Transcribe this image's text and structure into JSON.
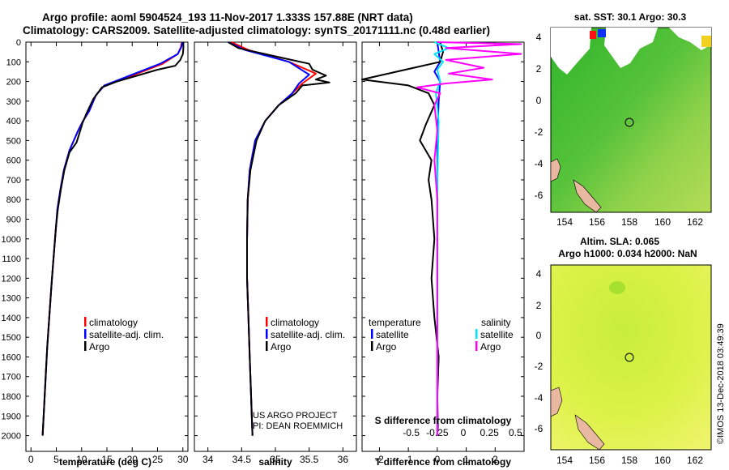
{
  "header": {
    "line1": "Argo profile: aoml 5904524_193 11-Nov-2017 1.333S 157.88E (NRT data)",
    "line2": "Climatology: CARS2009. Satellite-adjusted climatology: synTS_20171111.nc (0.48d earlier)"
  },
  "side_stamp": "©IMOS 13-Dec-2018 03:49:39",
  "colors": {
    "climatology": "#ff0000",
    "satellite": "#0000ff",
    "argo": "#000000",
    "sat_salinity": "#00e5ff",
    "clim_salinity": "#ff00ff"
  },
  "chart_data": [
    {
      "id": "temperature",
      "type": "line",
      "xlabel": "temperature (deg C)",
      "ylabel": "",
      "xlim": [
        -1,
        31
      ],
      "ylim": [
        2080,
        0
      ],
      "xticks": [
        0,
        5,
        10,
        15,
        20,
        25,
        30
      ],
      "yticks": [
        0,
        100,
        200,
        300,
        400,
        500,
        600,
        700,
        800,
        900,
        1000,
        1100,
        1200,
        1300,
        1400,
        1500,
        1600,
        1700,
        1800,
        1900,
        2000
      ],
      "legend": [
        "climatology",
        "satellite-adj. clim.",
        "Argo"
      ],
      "series": [
        {
          "name": "climatology",
          "color": "#ff0000",
          "x": [
            29.8,
            29.6,
            29.0,
            26.0,
            19.0,
            14.5,
            12.8,
            11.5,
            10.3,
            9.3,
            7.6,
            6.5,
            5.8,
            5.2,
            4.9,
            4.6,
            4.3,
            4.0,
            3.6,
            3.2,
            2.9,
            2.5,
            2.3
          ],
          "y": [
            0,
            25,
            60,
            110,
            180,
            220,
            270,
            350,
            400,
            450,
            550,
            650,
            750,
            850,
            950,
            1050,
            1150,
            1250,
            1400,
            1550,
            1700,
            1900,
            2000
          ]
        },
        {
          "name": "satellite-adj. clim.",
          "color": "#0000ff",
          "x": [
            29.9,
            29.7,
            29.0,
            25.5,
            18.5,
            14.5,
            12.8,
            11.5,
            10.3,
            9.3,
            7.6,
            6.5,
            5.8,
            5.2,
            4.9,
            4.6,
            4.3,
            4.0,
            3.6,
            3.2,
            2.9,
            2.5,
            2.3
          ],
          "y": [
            0,
            25,
            60,
            110,
            180,
            220,
            270,
            350,
            400,
            450,
            550,
            650,
            750,
            850,
            950,
            1050,
            1150,
            1250,
            1400,
            1550,
            1700,
            1900,
            2000
          ]
        },
        {
          "name": "Argo",
          "color": "#000000",
          "x": [
            30.1,
            30.1,
            30.0,
            29.5,
            28.5,
            25.0,
            17.0,
            14.0,
            12.3,
            11.0,
            10.2,
            9.6,
            9.0,
            7.6,
            6.6,
            5.9,
            5.3,
            4.9,
            4.6,
            4.3,
            4.0,
            3.6,
            3.2,
            2.9,
            2.6,
            2.3
          ],
          "y": [
            0,
            30,
            60,
            90,
            120,
            140,
            200,
            230,
            290,
            360,
            410,
            460,
            510,
            560,
            650,
            750,
            850,
            950,
            1050,
            1150,
            1250,
            1400,
            1550,
            1700,
            1850,
            2000
          ]
        }
      ]
    },
    {
      "id": "salinity",
      "type": "line",
      "xlabel": "salinity",
      "xlim": [
        33.8,
        36.2
      ],
      "ylim": [
        2080,
        0
      ],
      "xticks": [
        34,
        34.5,
        35,
        35.5,
        36
      ],
      "legend": [
        "climatology",
        "satellite-adj. clim.",
        "Argo"
      ],
      "credit": [
        "US ARGO PROJECT",
        "PI: DEAN ROEMMICH"
      ],
      "series": [
        {
          "name": "climatology",
          "color": "#ff0000",
          "x": [
            34.35,
            34.6,
            35.2,
            35.6,
            35.4,
            35.25,
            35.05,
            34.85,
            34.7,
            34.62,
            34.59,
            34.58,
            34.58,
            34.6,
            34.62,
            34.64,
            34.66
          ],
          "y": [
            0,
            40,
            100,
            160,
            210,
            260,
            320,
            400,
            500,
            650,
            800,
            1000,
            1200,
            1400,
            1600,
            1800,
            2000
          ]
        },
        {
          "name": "satellite-adj. clim.",
          "color": "#0000ff",
          "x": [
            34.3,
            34.55,
            35.2,
            35.5,
            35.35,
            35.25,
            35.05,
            34.85,
            34.7,
            34.62,
            34.59,
            34.58,
            34.58,
            34.6,
            34.62,
            34.64,
            34.66
          ],
          "y": [
            0,
            40,
            100,
            165,
            210,
            260,
            320,
            400,
            500,
            650,
            800,
            1000,
            1200,
            1400,
            1600,
            1800,
            2000
          ]
        },
        {
          "name": "Argo",
          "color": "#000000",
          "x": [
            34.3,
            34.45,
            35.1,
            35.5,
            35.55,
            35.75,
            35.6,
            35.8,
            35.4,
            35.3,
            35.05,
            34.85,
            34.72,
            34.63,
            34.59,
            34.58,
            34.58,
            34.6,
            34.62,
            34.64,
            34.66
          ],
          "y": [
            0,
            30,
            80,
            110,
            140,
            170,
            190,
            205,
            220,
            260,
            320,
            400,
            500,
            650,
            800,
            1000,
            1200,
            1400,
            1600,
            1800,
            2000
          ]
        }
      ]
    },
    {
      "id": "difference",
      "type": "line",
      "xlabel": "T difference from climatology",
      "xlabel_top": "S difference from climatology",
      "xlim": [
        -2.6,
        3.0
      ],
      "ylim": [
        2080,
        0
      ],
      "xticks": [
        -2,
        -1,
        0,
        1,
        2
      ],
      "xticks_top": [
        "-0.5",
        "-0.25",
        "0",
        "0.25",
        "0.5"
      ],
      "legend_left": {
        "title": "temperature",
        "items": [
          "satellite",
          "Argo"
        ]
      },
      "legend_right": {
        "title": "salinity",
        "items": [
          "satellite",
          "Argo"
        ]
      },
      "series": [
        {
          "name": "T satellite",
          "color": "#0000ff",
          "x": [
            0,
            0.05,
            0.1,
            -0.1,
            0.1,
            0.05,
            0,
            0
          ],
          "y": [
            0,
            50,
            100,
            150,
            200,
            300,
            500,
            2000
          ]
        },
        {
          "name": "T Argo",
          "color": "#000000",
          "x": [
            0.1,
            0.2,
            0.1,
            -2.6,
            -1.0,
            -0.3,
            -0.1,
            -0.4,
            -0.6,
            -0.2,
            -0.3,
            -0.2,
            -0.1,
            -0.2,
            -0.1,
            0.05,
            0.0,
            0.02,
            0.0
          ],
          "y": [
            0,
            50,
            100,
            190,
            220,
            260,
            320,
            420,
            500,
            600,
            700,
            800,
            1000,
            1200,
            1400,
            1600,
            1800,
            1950,
            2000
          ]
        },
        {
          "name": "S satellite",
          "color": "#00e5ff",
          "x": [
            -0.1,
            0.4,
            -0.1,
            0.2,
            0.0,
            0.1,
            -0.05,
            0.05,
            0.0,
            0.0
          ],
          "y": [
            0,
            30,
            60,
            100,
            140,
            200,
            260,
            400,
            700,
            2000
          ]
        },
        {
          "name": "S Argo",
          "color": "#ff00ff",
          "x": [
            0.0,
            2.9,
            0.3,
            2.9,
            0.3,
            1.6,
            0.4,
            1.9,
            0.3,
            -0.7,
            0.1,
            -0.1,
            0.0,
            -0.1,
            0.0,
            0.0
          ],
          "y": [
            0,
            10,
            30,
            60,
            90,
            130,
            160,
            190,
            210,
            230,
            260,
            320,
            450,
            600,
            800,
            2000
          ]
        }
      ]
    }
  ],
  "maps": {
    "sst": {
      "title": "sat. SST: 30.1 Argo: 30.3",
      "xticks": [
        "154",
        "156",
        "158",
        "160",
        "162"
      ],
      "yticks": [
        "4",
        "2",
        "0",
        "-2",
        "-4",
        "-6"
      ]
    },
    "sla": {
      "title1": "Altim. SLA: 0.065",
      "title2": "Argo h1000: 0.034 h2000: NaN",
      "xticks": [
        "154",
        "156",
        "158",
        "160",
        "162"
      ],
      "yticks": [
        "4",
        "2",
        "0",
        "-2",
        "-4",
        "-6"
      ]
    }
  }
}
